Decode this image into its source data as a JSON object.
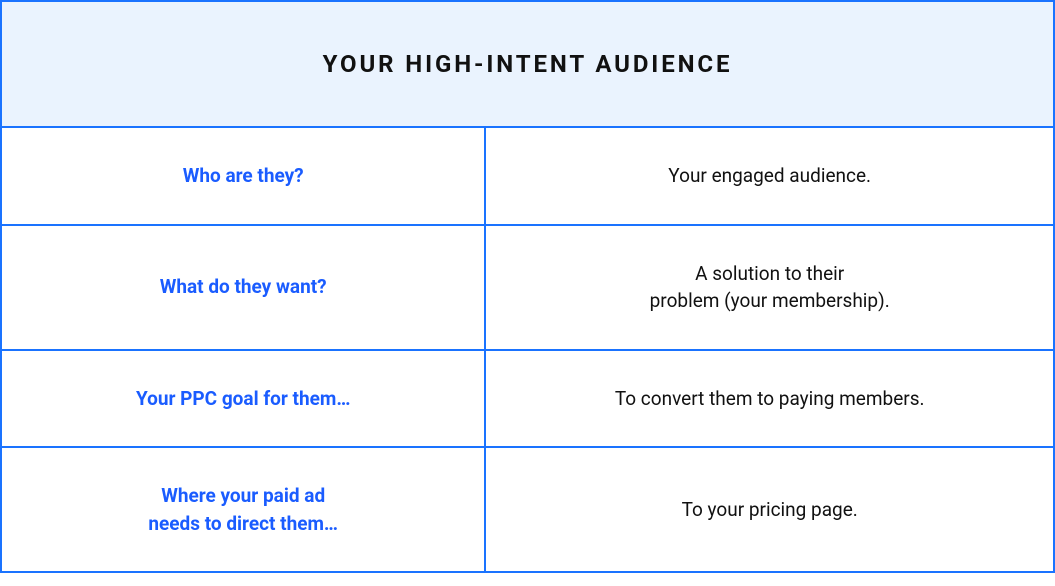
{
  "table": {
    "type": "table",
    "title": "YOUR HIGH-INTENT AUDIENCE",
    "header_bg": "#eaf3fe",
    "header_text_color": "#111111",
    "header_fontsize": 24,
    "border_color": "#1a73ff",
    "border_width": 2,
    "cell_bg": "#ffffff",
    "label_color": "#1a5cff",
    "value_color": "#111111",
    "body_fontsize": 19,
    "columns": [
      "label",
      "value"
    ],
    "column_widths": [
      "46%",
      "54%"
    ],
    "rows": [
      {
        "label": "Who are they?",
        "value": "Your engaged audience."
      },
      {
        "label": "What do they want?",
        "value": "A solution to their\nproblem (your membership)."
      },
      {
        "label": "Your PPC goal for them…",
        "value": "To convert them to paying members."
      },
      {
        "label": "Where your paid ad\nneeds to direct them…",
        "value": "To your pricing page."
      }
    ]
  }
}
